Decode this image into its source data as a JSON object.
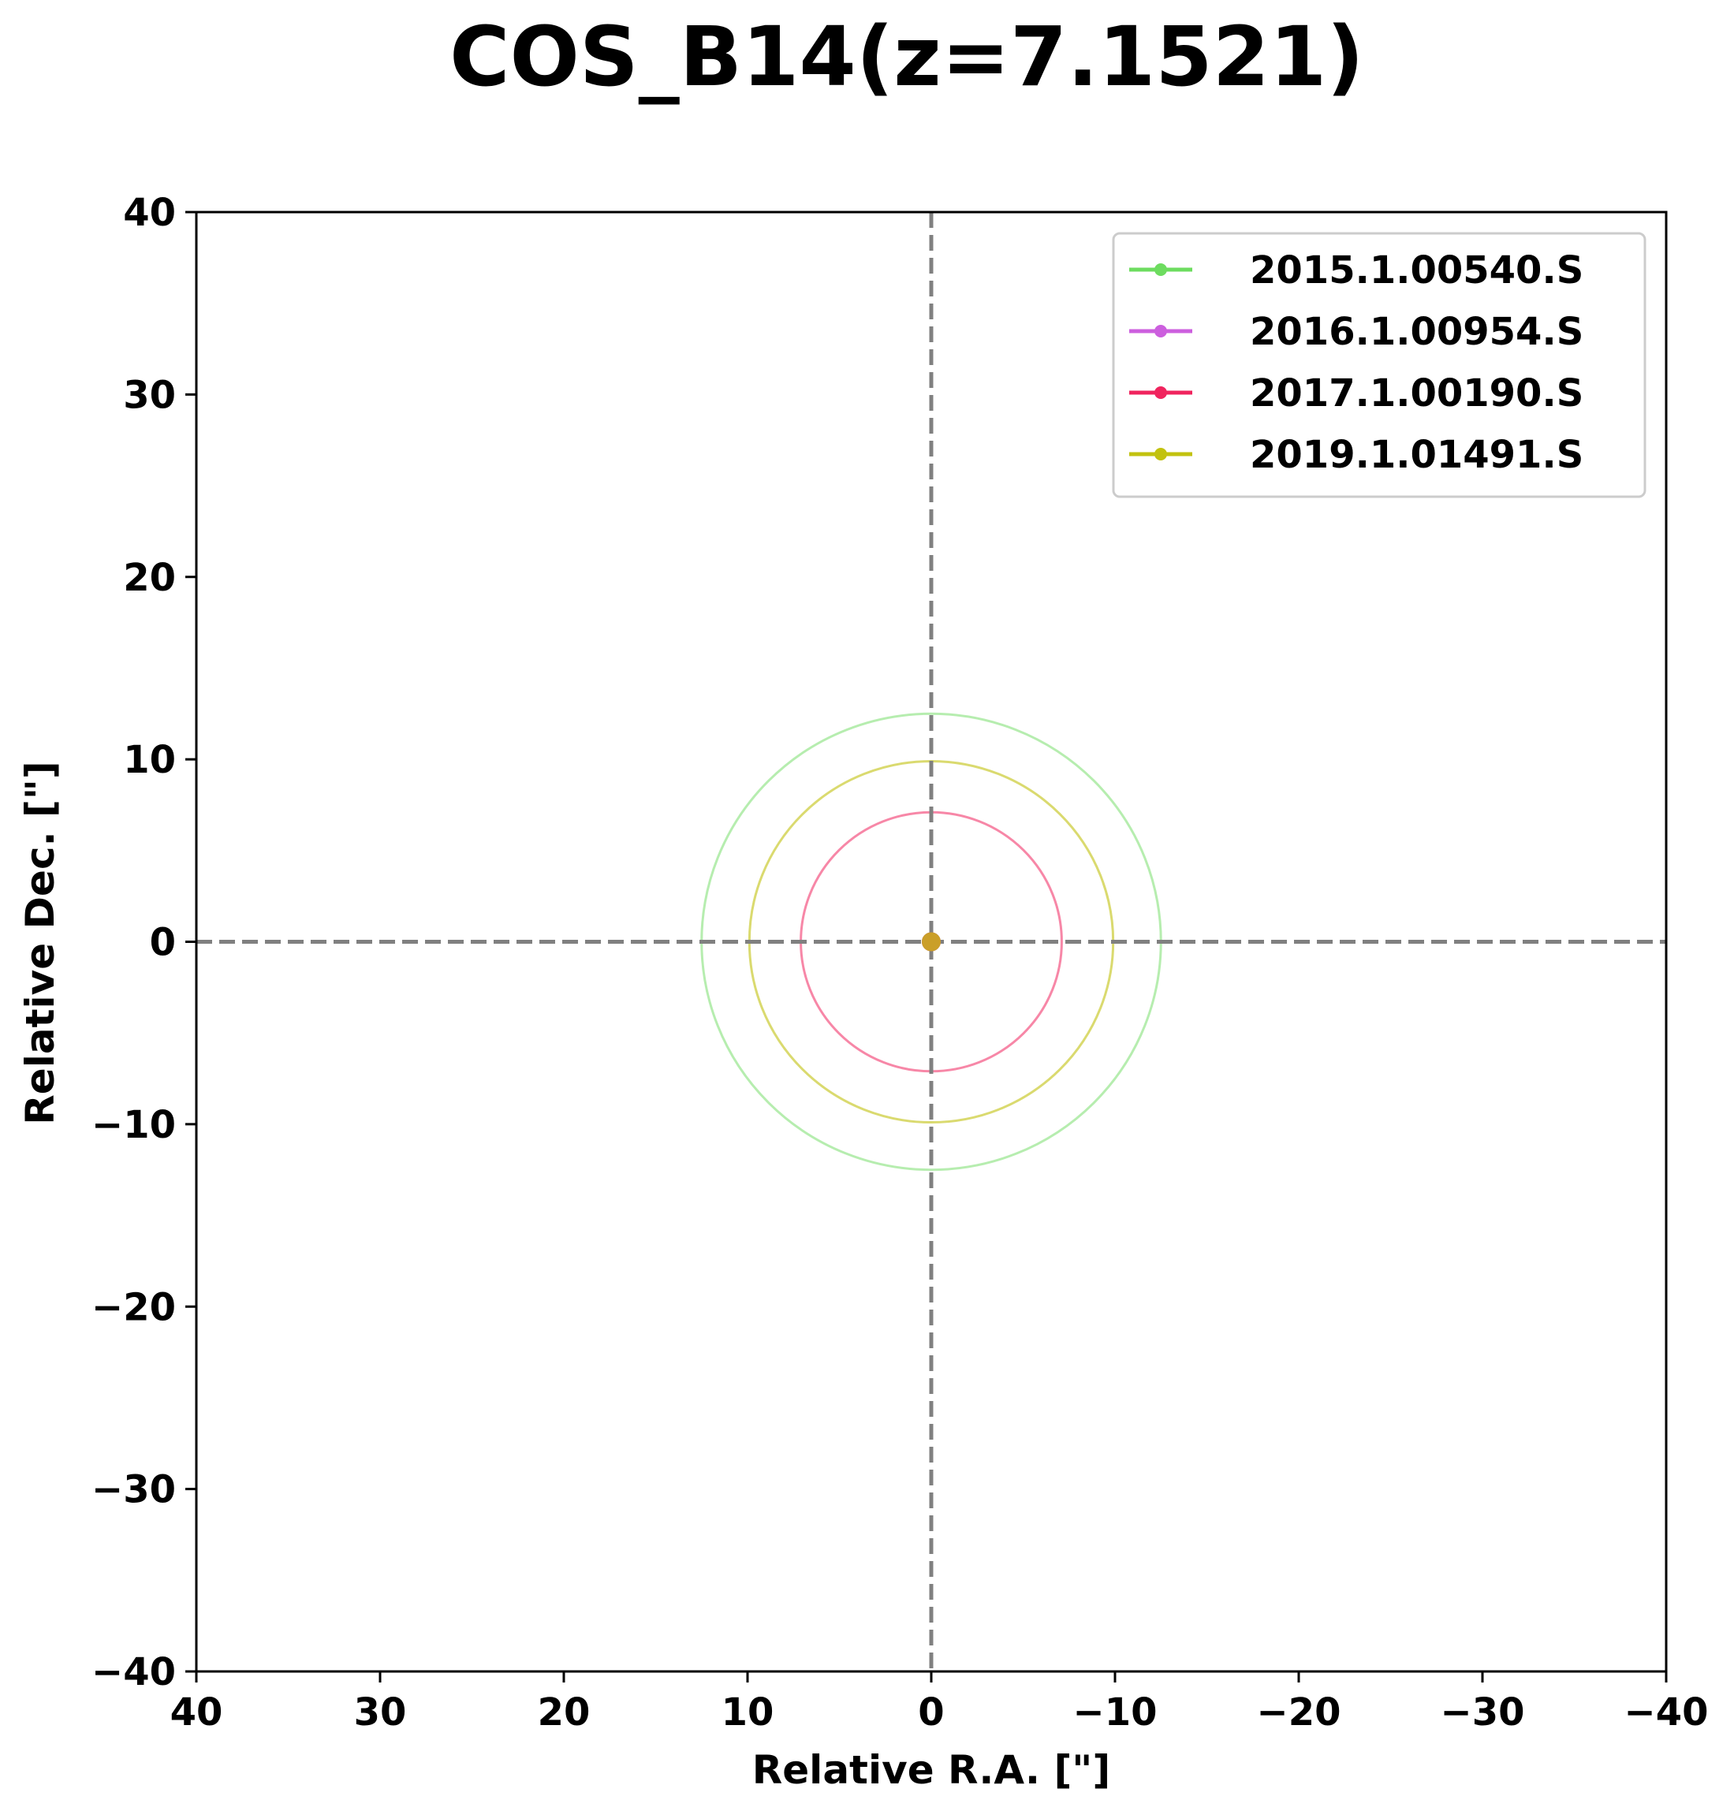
{
  "chart_data": {
    "type": "scatter",
    "title": "COS_B14(z=7.1521)",
    "xlabel": "Relative R.A. [\"]",
    "ylabel": "Relative Dec. [\"]",
    "xlim": [
      40,
      -40
    ],
    "ylim": [
      -40,
      40
    ],
    "x_inverted": true,
    "x_ticks": [
      {
        "value": 40,
        "label": "40"
      },
      {
        "value": 30,
        "label": "30"
      },
      {
        "value": 20,
        "label": "20"
      },
      {
        "value": 10,
        "label": "10"
      },
      {
        "value": 0,
        "label": "0"
      },
      {
        "value": -10,
        "label": "−10"
      },
      {
        "value": -20,
        "label": "−20"
      },
      {
        "value": -30,
        "label": "−30"
      },
      {
        "value": -40,
        "label": "−40"
      }
    ],
    "y_ticks": [
      {
        "value": 40,
        "label": "40"
      },
      {
        "value": 30,
        "label": "30"
      },
      {
        "value": 20,
        "label": "20"
      },
      {
        "value": 10,
        "label": "10"
      },
      {
        "value": 0,
        "label": "0"
      },
      {
        "value": -10,
        "label": "−10"
      },
      {
        "value": -20,
        "label": "−20"
      },
      {
        "value": -30,
        "label": "−30"
      },
      {
        "value": -40,
        "label": "−40"
      }
    ],
    "reference_lines": {
      "x": 0,
      "y": 0,
      "style": "dashed",
      "color": "#808080"
    },
    "legend_position": "top-right",
    "series": [
      {
        "name": "2015.1.00540.S",
        "color": "#6ddc5f",
        "x": 0,
        "y": 0,
        "radius": 12.5,
        "circle_opacity": 0.5
      },
      {
        "name": "2016.1.00954.S",
        "color": "#cc5fde",
        "x": 0,
        "y": 0,
        "radius": null,
        "circle_opacity": 0.85
      },
      {
        "name": "2017.1.00190.S",
        "color": "#f0245e",
        "x": 0,
        "y": 0,
        "radius": 7.1,
        "circle_opacity": 0.55
      },
      {
        "name": "2019.1.01491.S",
        "color": "#c2c20f",
        "x": 0,
        "y": 0,
        "radius": 9.9,
        "circle_opacity": 0.6
      }
    ]
  }
}
